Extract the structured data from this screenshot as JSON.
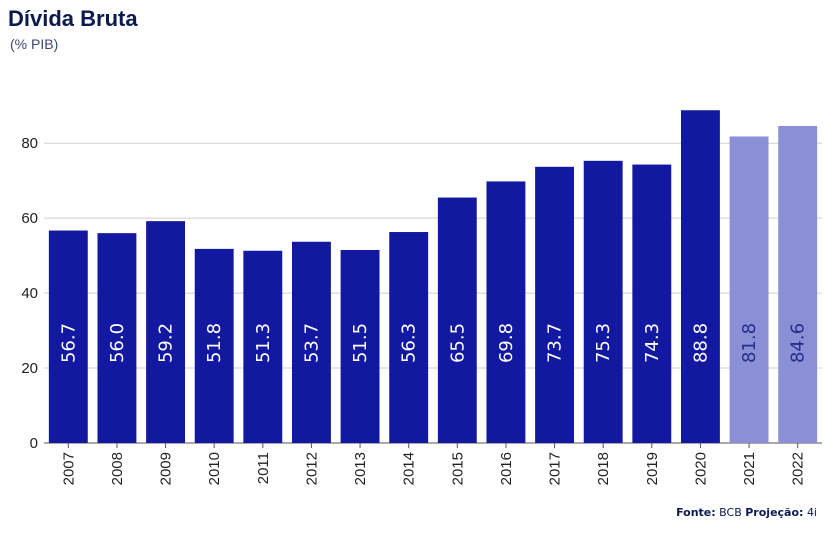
{
  "chart_data": {
    "type": "bar",
    "title": "Dívida Bruta",
    "subtitle": "(% PIB)",
    "categories": [
      "2007",
      "2008",
      "2009",
      "2010",
      "2011",
      "2012",
      "2013",
      "2014",
      "2015",
      "2016",
      "2017",
      "2018",
      "2019",
      "2020",
      "2021",
      "2022"
    ],
    "values": [
      56.7,
      56.0,
      59.2,
      51.8,
      51.3,
      53.7,
      51.5,
      56.3,
      65.5,
      69.8,
      73.7,
      75.3,
      74.3,
      88.8,
      81.8,
      84.6
    ],
    "projected": [
      false,
      false,
      false,
      false,
      false,
      false,
      false,
      false,
      false,
      false,
      false,
      false,
      false,
      false,
      true,
      true
    ],
    "yticks": [
      0,
      20,
      40,
      60,
      80
    ],
    "ylim": [
      0,
      95
    ],
    "grid": true,
    "colors": {
      "actual": "#1219a0",
      "projection": "#8b8fd6",
      "label_projection": "#23308a"
    }
  },
  "source": {
    "fonte_label": "Fonte:",
    "fonte_value": "BCB",
    "projecao_label": "Projeção:",
    "projecao_value": "4i"
  }
}
